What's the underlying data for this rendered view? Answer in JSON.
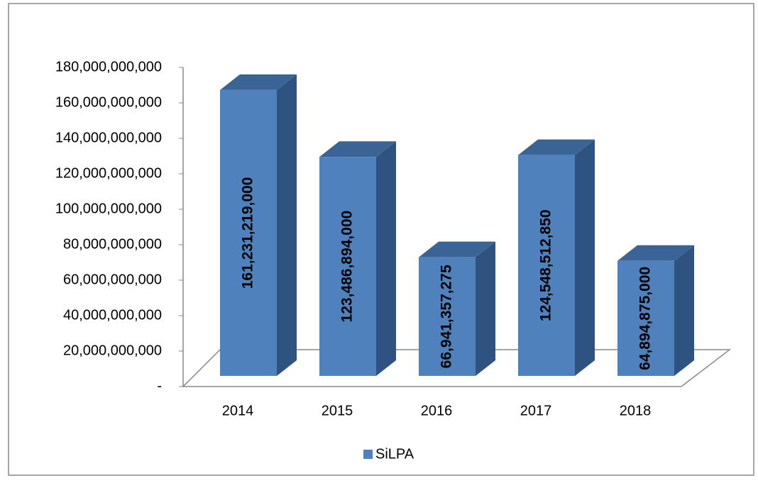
{
  "chart_data": {
    "type": "bar3d",
    "categories": [
      "2014",
      "2015",
      "2016",
      "2017",
      "2018"
    ],
    "series": [
      {
        "name": "SiLPA",
        "color": "#4f81bd",
        "values": [
          161231219000,
          123486894000,
          66941357275,
          124548512850,
          64894875000
        ],
        "value_labels": [
          "161,231,219,000",
          "123,486,894,000",
          "66,941,357,275",
          "124,548,512,850",
          "64,894,875,000"
        ]
      }
    ],
    "ylim": [
      0,
      180000000000
    ],
    "yticks": [
      {
        "value": 0,
        "label": "-"
      },
      {
        "value": 20000000000,
        "label": "20,000,000,000"
      },
      {
        "value": 40000000000,
        "label": "40,000,000,000"
      },
      {
        "value": 60000000000,
        "label": "60,000,000,000"
      },
      {
        "value": 80000000000,
        "label": "80,000,000,000"
      },
      {
        "value": 100000000000,
        "label": "100,000,000,000"
      },
      {
        "value": 120000000000,
        "label": "120,000,000,000"
      },
      {
        "value": 140000000000,
        "label": "140,000,000,000"
      },
      {
        "value": 160000000000,
        "label": "160,000,000,000"
      },
      {
        "value": 180000000000,
        "label": "180,000,000,000"
      }
    ],
    "legend": "bottom"
  }
}
